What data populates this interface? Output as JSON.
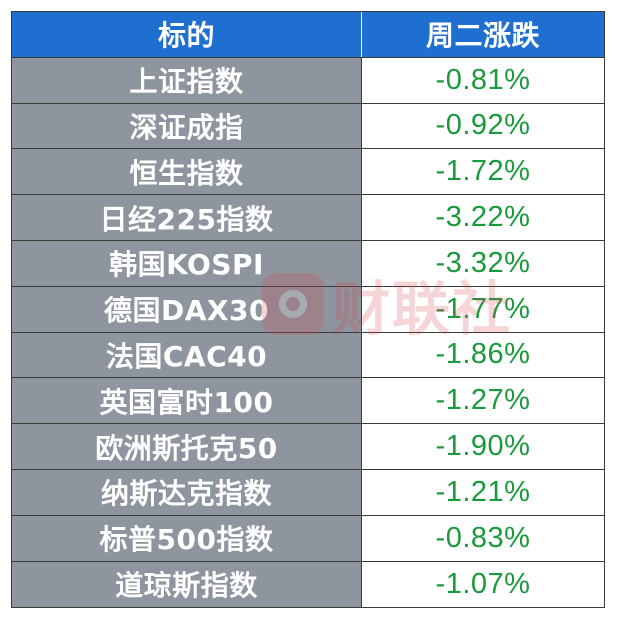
{
  "header": {
    "name_label": "标的",
    "change_label": "周二涨跌"
  },
  "rows": [
    {
      "name": "上证指数",
      "change": "-0.81%"
    },
    {
      "name": "深证成指",
      "change": "-0.92%"
    },
    {
      "name": "恒生指数",
      "change": "-1.72%"
    },
    {
      "name": "日经225指数",
      "change": "-3.22%"
    },
    {
      "name": "韩国KOSPI",
      "change": "-3.32%"
    },
    {
      "name": "德国DAX30",
      "change": "-1.77%"
    },
    {
      "name": "法国CAC40",
      "change": "-1.86%"
    },
    {
      "name": "英国富时100",
      "change": "-1.27%"
    },
    {
      "name": "欧洲斯托克50",
      "change": "-1.90%"
    },
    {
      "name": "纳斯达克指数",
      "change": "-1.21%"
    },
    {
      "name": "标普500指数",
      "change": "-0.83%"
    },
    {
      "name": "道琼斯指数",
      "change": "-1.07%"
    }
  ],
  "watermark": {
    "text": "财联社",
    "color": "#d9434a"
  },
  "colors": {
    "header_bg": "#1f6fd1",
    "name_bg": "#8e959e",
    "change_text": "#1a9a3c"
  }
}
